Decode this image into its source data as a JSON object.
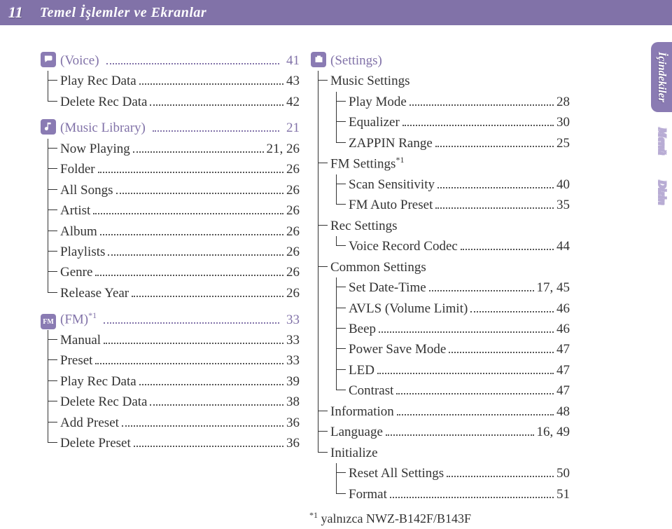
{
  "page_number": "11",
  "header_title": "Temel İşlemler ve Ekranlar",
  "palette": {
    "band": "#8172a8",
    "icon": "#8a7bb3",
    "text": "#333333"
  },
  "left_column": [
    {
      "type": "section",
      "icon": "voice",
      "title": "(Voice)",
      "page": "41",
      "children": [
        {
          "label": "Play Rec Data",
          "page": "43"
        },
        {
          "label": "Delete Rec Data",
          "page": "42"
        }
      ]
    },
    {
      "type": "section",
      "icon": "music",
      "title": "(Music Library)",
      "page": "21",
      "children": [
        {
          "label": "Now Playing",
          "page": "21, 26"
        },
        {
          "label": "Folder",
          "page": "26"
        },
        {
          "label": "All Songs",
          "page": "26"
        },
        {
          "label": "Artist",
          "page": "26"
        },
        {
          "label": "Album",
          "page": "26"
        },
        {
          "label": "Playlists",
          "page": "26"
        },
        {
          "label": "Genre",
          "page": "26"
        },
        {
          "label": "Release Year",
          "page": "26"
        }
      ]
    },
    {
      "type": "section",
      "icon": "fm",
      "title": "(FM)",
      "title_sup": "*1",
      "page": "33",
      "children": [
        {
          "label": "Manual",
          "page": "33"
        },
        {
          "label": "Preset",
          "page": "33"
        },
        {
          "label": "Play Rec Data",
          "page": "39"
        },
        {
          "label": "Delete Rec Data",
          "page": "38"
        },
        {
          "label": "Add Preset",
          "page": "36"
        },
        {
          "label": "Delete Preset",
          "page": "36"
        }
      ]
    }
  ],
  "right_column": {
    "type": "section",
    "icon": "settings",
    "title": "(Settings)",
    "groups": [
      {
        "label": "Music Settings",
        "children": [
          {
            "label": "Play Mode",
            "page": "28"
          },
          {
            "label": "Equalizer",
            "page": "30"
          },
          {
            "label": "ZAPPIN Range",
            "page": "25"
          }
        ]
      },
      {
        "label": "FM Settings",
        "label_sup": "*1",
        "children": [
          {
            "label": "Scan Sensitivity",
            "page": "40"
          },
          {
            "label": "FM Auto Preset",
            "page": "35"
          }
        ]
      },
      {
        "label": "Rec Settings",
        "children": [
          {
            "label": "Voice Record Codec",
            "page": "44"
          }
        ]
      },
      {
        "label": "Common Settings",
        "children": [
          {
            "label": "Set Date-Time",
            "page": "17, 45"
          },
          {
            "label": "AVLS (Volume Limit)",
            "page": "46"
          },
          {
            "label": "Beep",
            "page": "46"
          },
          {
            "label": "Power Save Mode",
            "page": "47"
          },
          {
            "label": "LED",
            "page": "47"
          },
          {
            "label": "Contrast",
            "page": "47"
          }
        ]
      },
      {
        "label": "Information",
        "page": "48"
      },
      {
        "label": "Language",
        "page": "16, 49"
      },
      {
        "label": "Initialize",
        "children": [
          {
            "label": "Reset All Settings",
            "page": "50"
          },
          {
            "label": "Format",
            "page": "51"
          }
        ]
      }
    ]
  },
  "footnote_marker": "*1",
  "footnote_text": "yalnızca NWZ-B142F/B143F",
  "tabs": [
    "İçindekiler",
    "Menü",
    "Dizin"
  ]
}
